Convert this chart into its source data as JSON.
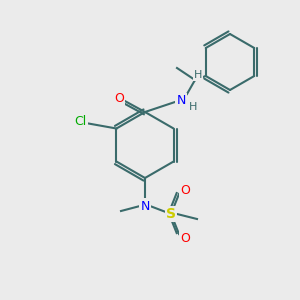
{
  "background_color": "#ebebeb",
  "bond_color": "#3a6b6b",
  "bond_width": 1.5,
  "atom_colors": {
    "N": "#0000ff",
    "O": "#ff0000",
    "S": "#cccc00",
    "Cl": "#00aa00",
    "C": "#000000",
    "H": "#3a6b6b"
  }
}
